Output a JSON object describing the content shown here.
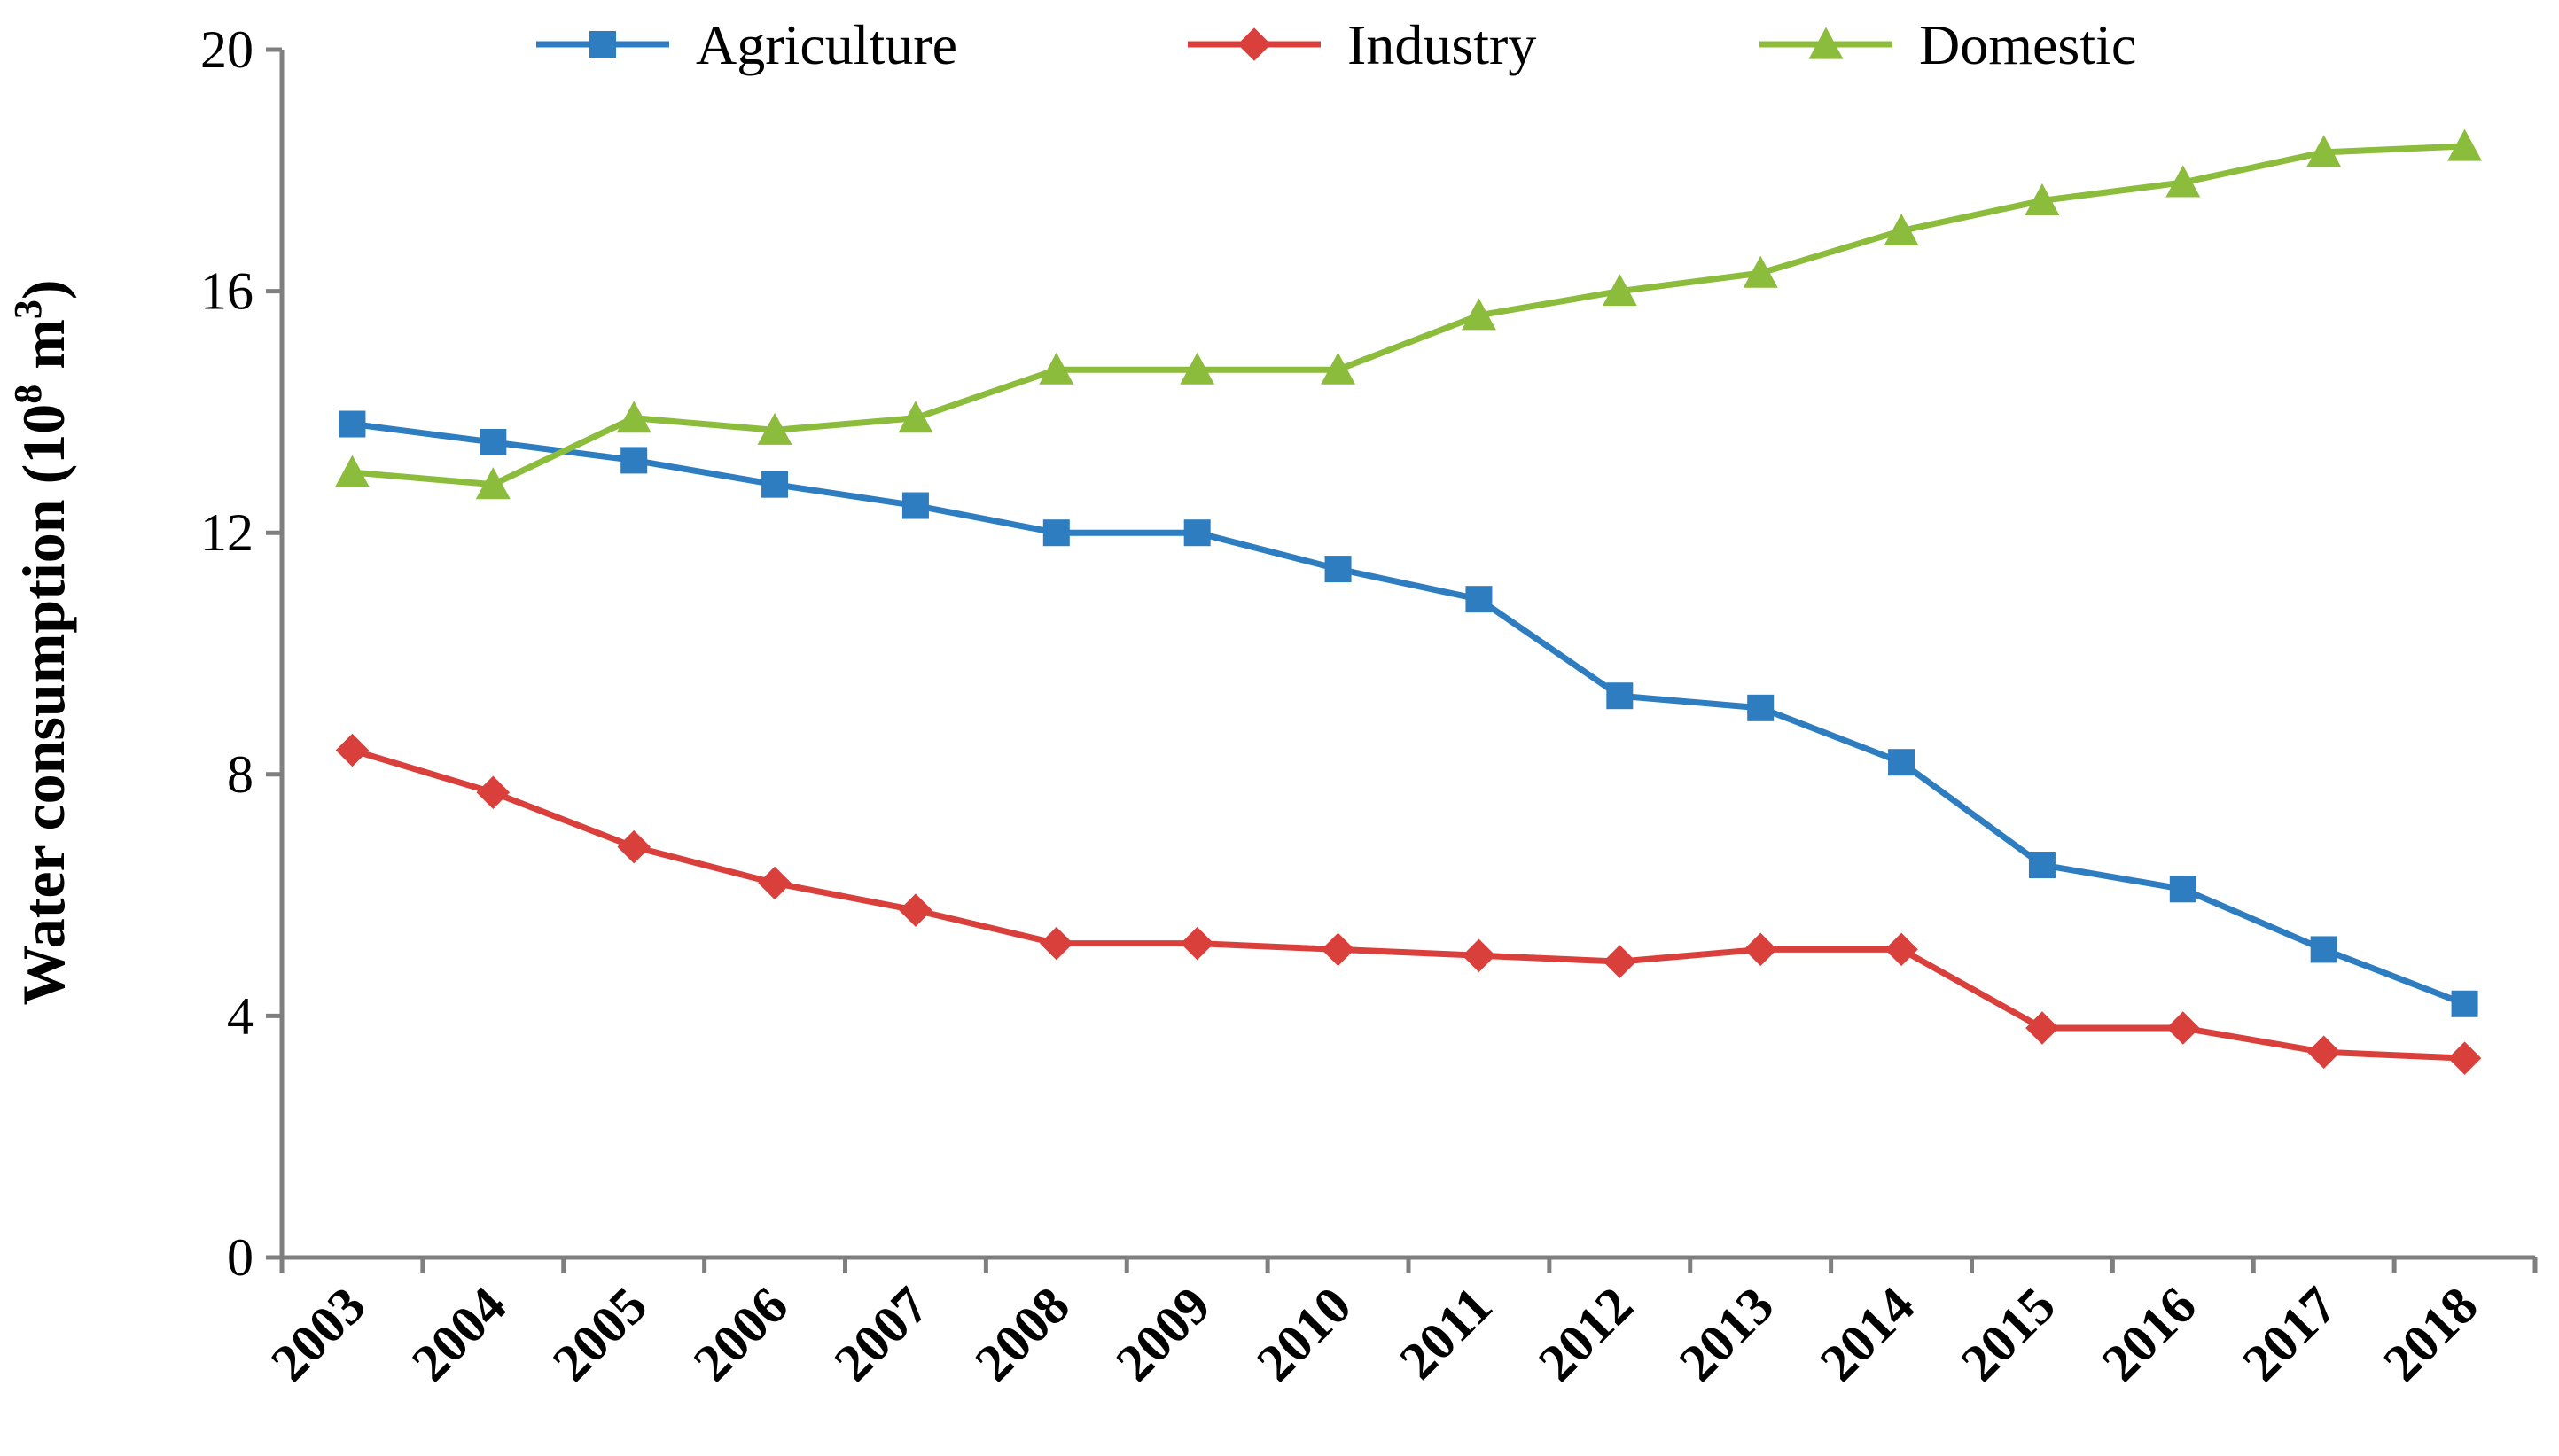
{
  "chart_data": {
    "type": "line",
    "title": "",
    "xlabel": "",
    "ylabel": "Water consumption (10⁸ m³)",
    "ylabel_parts": {
      "main": "Water consumption (10",
      "exp1": "8",
      "unit": " m",
      "exp2": "3",
      "close": ")"
    },
    "ylim": [
      0,
      20
    ],
    "yticks": [
      0,
      4,
      8,
      12,
      16,
      20
    ],
    "grid": false,
    "legend_position": "top",
    "categories": [
      "2003",
      "2004",
      "2005",
      "2006",
      "2007",
      "2008",
      "2009",
      "2010",
      "2011",
      "2012",
      "2013",
      "2014",
      "2015",
      "2016",
      "2017",
      "2018"
    ],
    "series": [
      {
        "name": "Agriculture",
        "color": "#2e7dc0",
        "marker": "square",
        "values": [
          13.8,
          13.5,
          13.2,
          12.8,
          12.45,
          12.0,
          12.0,
          11.4,
          10.9,
          9.3,
          9.1,
          8.2,
          6.5,
          6.1,
          5.1,
          4.2
        ]
      },
      {
        "name": "Industry",
        "color": "#d9403c",
        "marker": "diamond",
        "values": [
          8.4,
          7.7,
          6.8,
          6.2,
          5.75,
          5.2,
          5.2,
          5.1,
          5.0,
          4.9,
          5.1,
          5.1,
          3.8,
          3.8,
          3.4,
          3.3
        ]
      },
      {
        "name": "Domestic",
        "color": "#8cbc3c",
        "marker": "triangle",
        "values": [
          13.0,
          12.8,
          13.9,
          13.7,
          13.9,
          14.7,
          14.7,
          14.7,
          15.6,
          16.0,
          16.3,
          17.0,
          17.5,
          17.8,
          18.3,
          18.4
        ]
      }
    ]
  }
}
